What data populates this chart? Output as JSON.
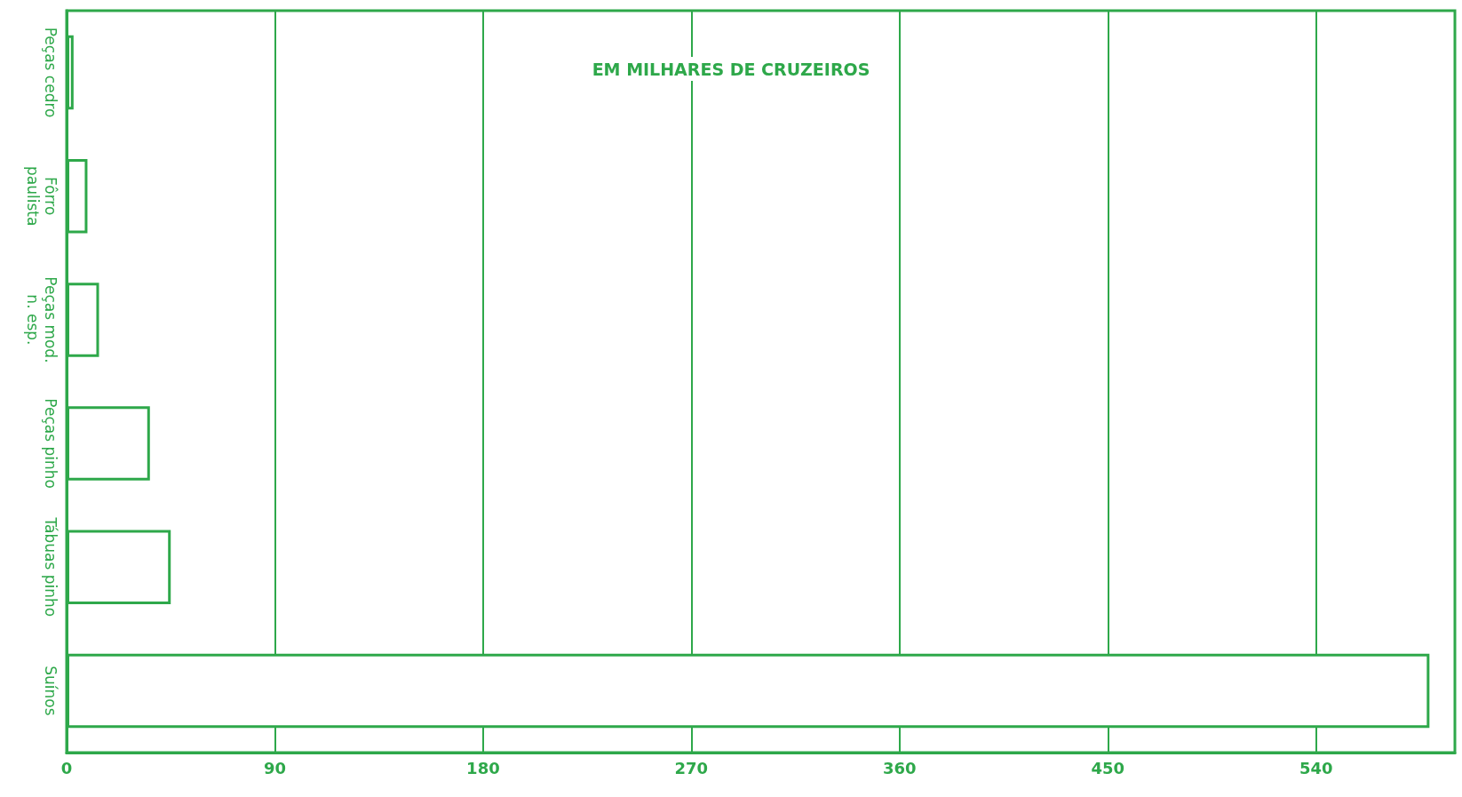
{
  "chart_data": {
    "type": "bar",
    "orientation": "horizontal",
    "title": "EM MILHARES DE CRUZEIROS",
    "categories": [
      "Peças cedro",
      "Fôrro\npaulista",
      "Peças mod.\nn. esp.",
      "Peças pinho",
      "Tábuas pinho",
      "Suínos"
    ],
    "values": [
      3,
      9,
      14,
      36,
      45,
      589
    ],
    "color": "#2ea84a",
    "xlim": [
      0,
      600
    ],
    "xticks": [
      0,
      90,
      180,
      270,
      360,
      450,
      540
    ],
    "grid": "x"
  }
}
